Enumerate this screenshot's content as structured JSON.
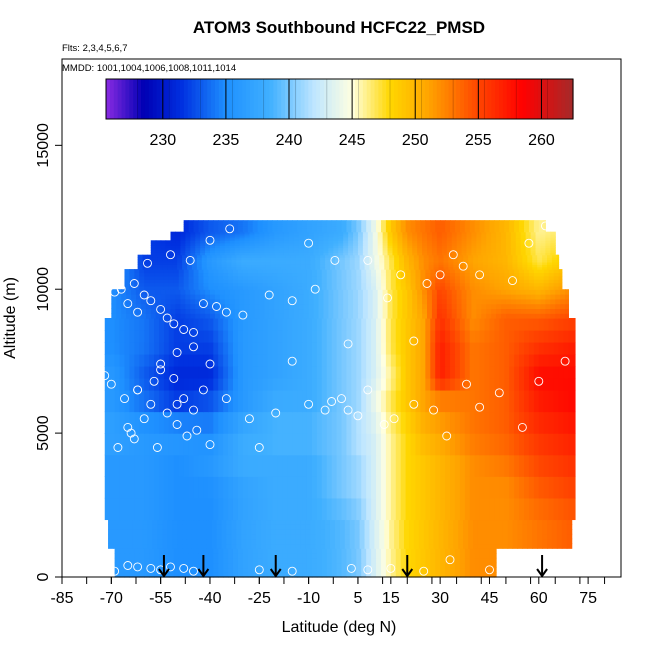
{
  "chart_data": {
    "type": "heatmap",
    "title": "ATOM3 Southbound HCFC22_PMSD",
    "subtitle_lines": [
      "Flts: 2,3,4,5,6,7",
      "MMDD: 1001,1004,1006,1008,1011,1014"
    ],
    "xlabel": "Latitude (deg N)",
    "ylabel": "Altitude (m)",
    "xlim": [
      -85,
      85
    ],
    "ylim": [
      0,
      18000
    ],
    "x_ticks": [
      -85,
      -70,
      -55,
      -40,
      -25,
      -10,
      5,
      15,
      30,
      45,
      60,
      75
    ],
    "y_ticks": [
      0,
      5000,
      10000,
      15000
    ],
    "colorbar": {
      "min": 225.5,
      "max": 262.5,
      "ticks": [
        230,
        235,
        240,
        245,
        250,
        255,
        260
      ],
      "stops": [
        {
          "v": 225.5,
          "c": "#8a2be2"
        },
        {
          "v": 228.5,
          "c": "#0000b4"
        },
        {
          "v": 231.5,
          "c": "#0030e0"
        },
        {
          "v": 235.0,
          "c": "#1e90ff"
        },
        {
          "v": 238.5,
          "c": "#40b0ff"
        },
        {
          "v": 242.0,
          "c": "#bfe6ff"
        },
        {
          "v": 245.0,
          "c": "#ffffe0"
        },
        {
          "v": 248.0,
          "c": "#ffd700"
        },
        {
          "v": 251.0,
          "c": "#ffa500"
        },
        {
          "v": 255.0,
          "c": "#ff4500"
        },
        {
          "v": 258.5,
          "c": "#ff0000"
        },
        {
          "v": 262.5,
          "c": "#a52a2a"
        }
      ]
    },
    "field": {
      "altitude_levels_m": [
        0,
        1000,
        2000,
        3000,
        4000,
        5000,
        6000,
        7000,
        8000,
        9000,
        10000,
        11000,
        12000
      ],
      "columns": [
        {
          "lat": -70,
          "values": [
            236,
            236,
            236,
            236,
            236,
            237,
            236,
            236,
            235,
            235,
            235,
            236,
            236
          ]
        },
        {
          "lat": -60,
          "values": [
            236,
            236,
            236,
            236,
            236,
            236,
            234,
            233,
            234,
            234,
            233,
            232,
            232
          ]
        },
        {
          "lat": -50,
          "values": [
            235,
            235,
            235,
            235,
            235,
            236,
            232,
            231,
            232,
            232,
            233,
            232,
            231
          ]
        },
        {
          "lat": -40,
          "values": [
            235,
            235,
            235,
            235,
            236,
            235,
            233,
            231,
            232,
            233,
            235,
            236,
            233
          ]
        },
        {
          "lat": -30,
          "values": [
            237,
            237,
            237,
            237,
            238,
            238,
            236,
            236,
            236,
            236,
            236,
            238,
            234
          ]
        },
        {
          "lat": -20,
          "values": [
            238,
            238,
            238,
            238,
            238,
            239,
            238,
            237,
            237,
            237,
            237,
            238,
            236
          ]
        },
        {
          "lat": -10,
          "values": [
            238,
            238,
            238,
            238,
            238,
            239,
            238,
            238,
            238,
            238,
            238,
            238,
            237
          ]
        },
        {
          "lat": 0,
          "values": [
            239,
            239,
            239,
            240,
            240,
            240,
            240,
            240,
            240,
            240,
            240,
            240,
            238
          ]
        },
        {
          "lat": 5,
          "values": [
            240,
            240,
            240,
            241,
            241,
            242,
            241,
            241,
            241,
            241,
            241,
            241,
            240
          ]
        },
        {
          "lat": 10,
          "values": [
            243,
            243,
            243,
            243,
            243,
            243,
            244,
            243,
            243,
            243,
            243,
            244,
            244
          ]
        },
        {
          "lat": 15,
          "values": [
            246,
            246,
            246,
            246,
            246,
            246,
            247,
            246,
            247,
            247,
            247,
            247,
            249
          ]
        },
        {
          "lat": 20,
          "values": [
            248,
            248,
            248,
            248,
            248,
            248,
            249,
            249,
            249,
            249,
            249,
            250,
            252
          ]
        },
        {
          "lat": 25,
          "values": [
            249,
            249,
            249,
            249,
            249,
            250,
            251,
            251,
            251,
            251,
            252,
            252,
            253
          ]
        },
        {
          "lat": 30,
          "values": [
            250,
            250,
            250,
            250,
            250,
            251,
            252,
            257,
            257,
            256,
            255,
            253,
            254
          ]
        },
        {
          "lat": 40,
          "values": [
            252,
            252,
            252,
            252,
            252,
            253,
            253,
            253,
            253,
            252,
            252,
            251,
            252
          ]
        },
        {
          "lat": 50,
          "values": [
            252,
            252,
            252,
            252,
            253,
            254,
            254,
            254,
            254,
            254,
            251,
            250,
            250
          ]
        },
        {
          "lat": 60,
          "values": [
            253,
            253,
            253,
            254,
            255,
            256,
            257,
            258,
            256,
            254,
            250,
            247,
            246
          ]
        },
        {
          "lat": 70,
          "values": [
            254,
            254,
            254,
            255,
            256,
            257,
            258,
            258,
            257,
            255,
            252,
            249,
            247
          ]
        }
      ],
      "coverage": [
        {
          "alt_top": 1000,
          "lat_min": -69,
          "lat_max": 47
        },
        {
          "alt_top": 2000,
          "lat_min": -71,
          "lat_max": 70
        },
        {
          "alt_top": 6500,
          "lat_min": -72,
          "lat_max": 71
        },
        {
          "alt_top": 9000,
          "lat_min": -72,
          "lat_max": 71
        },
        {
          "alt_top": 10000,
          "lat_min": -70,
          "lat_max": 69
        },
        {
          "alt_top": 10700,
          "lat_min": -66,
          "lat_max": 67
        },
        {
          "alt_top": 11200,
          "lat_min": -62,
          "lat_max": 66
        },
        {
          "alt_top": 11700,
          "lat_min": -58,
          "lat_max": 65
        },
        {
          "alt_top": 12000,
          "lat_min": -52,
          "lat_max": 65
        },
        {
          "alt_top": 12400,
          "lat_min": -48,
          "lat_max": 62
        }
      ]
    },
    "samples": [
      [
        -69,
        200
      ],
      [
        -65,
        400
      ],
      [
        -62,
        350
      ],
      [
        -58,
        300
      ],
      [
        -55,
        250
      ],
      [
        -52,
        350
      ],
      [
        -48,
        300
      ],
      [
        -45,
        200
      ],
      [
        -25,
        250
      ],
      [
        -15,
        200
      ],
      [
        3,
        300
      ],
      [
        8,
        250
      ],
      [
        15,
        300
      ],
      [
        25,
        200
      ],
      [
        33,
        600
      ],
      [
        45,
        250
      ],
      [
        -72,
        7000
      ],
      [
        -70,
        6700
      ],
      [
        -68,
        4500
      ],
      [
        -65,
        5200
      ],
      [
        -63,
        4800
      ],
      [
        -62,
        6500
      ],
      [
        -60,
        5500
      ],
      [
        -58,
        6000
      ],
      [
        -57,
        6800
      ],
      [
        -56,
        4500
      ],
      [
        -55,
        7400
      ],
      [
        -53,
        5700
      ],
      [
        -51,
        6900
      ],
      [
        -50,
        5300
      ],
      [
        -48,
        6200
      ],
      [
        -47,
        4900
      ],
      [
        -45,
        5800
      ],
      [
        -42,
        6500
      ],
      [
        -40,
        4600
      ],
      [
        -35,
        6200
      ],
      [
        -28,
        5500
      ],
      [
        -25,
        4500
      ],
      [
        -20,
        5700
      ],
      [
        -15,
        7500
      ],
      [
        -10,
        6000
      ],
      [
        -5,
        5800
      ],
      [
        -3,
        6100
      ],
      [
        0,
        6200
      ],
      [
        2,
        5800
      ],
      [
        5,
        5600
      ],
      [
        8,
        6500
      ],
      [
        13,
        5300
      ],
      [
        16,
        5500
      ],
      [
        22,
        6000
      ],
      [
        28,
        5800
      ],
      [
        32,
        4900
      ],
      [
        38,
        6700
      ],
      [
        42,
        5900
      ],
      [
        48,
        6400
      ],
      [
        55,
        5200
      ],
      [
        60,
        6800
      ],
      [
        68,
        7500
      ],
      [
        -69,
        9900
      ],
      [
        -67,
        10000
      ],
      [
        -65,
        9500
      ],
      [
        -63,
        10200
      ],
      [
        -62,
        9200
      ],
      [
        -60,
        9800
      ],
      [
        -58,
        9600
      ],
      [
        -55,
        9300
      ],
      [
        -53,
        9000
      ],
      [
        -51,
        8800
      ],
      [
        -48,
        8600
      ],
      [
        -45,
        8500
      ],
      [
        -42,
        9500
      ],
      [
        -38,
        9400
      ],
      [
        -35,
        9200
      ],
      [
        -30,
        9100
      ],
      [
        -22,
        9800
      ],
      [
        -15,
        9600
      ],
      [
        -10,
        11600
      ],
      [
        -8,
        10000
      ],
      [
        -2,
        11000
      ],
      [
        2,
        8100
      ],
      [
        8,
        11000
      ],
      [
        14,
        9700
      ],
      [
        18,
        10500
      ],
      [
        22,
        8200
      ],
      [
        26,
        10200
      ],
      [
        30,
        10500
      ],
      [
        34,
        11200
      ],
      [
        37,
        10800
      ],
      [
        42,
        10500
      ],
      [
        52,
        10300
      ],
      [
        57,
        11600
      ],
      [
        62,
        12200
      ],
      [
        -59,
        10900
      ],
      [
        -52,
        11200
      ],
      [
        -46,
        11000
      ],
      [
        -40,
        11700
      ],
      [
        -34,
        12100
      ],
      [
        -55,
        7200
      ],
      [
        -50,
        7800
      ],
      [
        -45,
        8000
      ],
      [
        -40,
        7400
      ],
      [
        -44,
        5100
      ],
      [
        -50,
        6000
      ],
      [
        -62,
        6500
      ],
      [
        -64,
        5000
      ],
      [
        -66,
        6200
      ]
    ],
    "arrow_latitudes": [
      -54,
      -42,
      -20,
      20,
      61
    ]
  }
}
